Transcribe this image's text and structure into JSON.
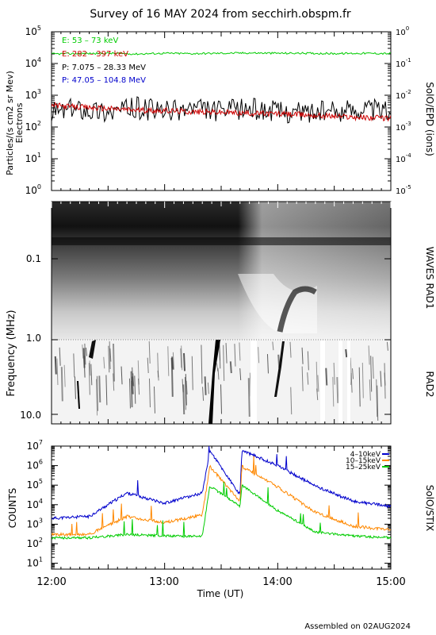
{
  "title": "Survey of 16 MAY 2024 from secchirh.obspm.fr",
  "footer": "Assembled on 02AUG2024",
  "x_axis": {
    "label": "Time (UT)",
    "ticks": [
      "12:00",
      "13:00",
      "14:00",
      "15:00"
    ]
  },
  "panel1": {
    "left_ylabel_line1": "Particles/(s cm2 sr Mev)",
    "left_ylabel_line2": "Electrons",
    "right_ylabel": "SolO/EPD (ions)",
    "left_ticks": [
      {
        "base": "10",
        "exp": "0"
      },
      {
        "base": "10",
        "exp": "1"
      },
      {
        "base": "10",
        "exp": "2"
      },
      {
        "base": "10",
        "exp": "3"
      },
      {
        "base": "10",
        "exp": "4"
      },
      {
        "base": "10",
        "exp": "5"
      }
    ],
    "right_ticks": [
      {
        "base": "10",
        "exp": "-5"
      },
      {
        "base": "10",
        "exp": "-4"
      },
      {
        "base": "10",
        "exp": "-3"
      },
      {
        "base": "10",
        "exp": "-2"
      },
      {
        "base": "10",
        "exp": "-1"
      },
      {
        "base": "10",
        "exp": "0"
      }
    ],
    "legend": [
      {
        "text": "E: 53 – 73 keV",
        "color": "#00cc00"
      },
      {
        "text": "E: 282 – 397 keV",
        "color": "#cc0000"
      },
      {
        "text": "P: 7.075 – 28.33 MeV",
        "color": "#000000"
      },
      {
        "text": "P: 47.05 – 104.8 MeV",
        "color": "#0000cc"
      }
    ]
  },
  "panel2": {
    "ylabel": "Frequency (MHz)",
    "right_label_top": "WAVES RAD1",
    "right_label_bottom": "RAD2",
    "ticks": [
      "0.1",
      "1.0",
      "10.0"
    ]
  },
  "panel3": {
    "ylabel": "COUNTS",
    "right_label": "SolO/STIX",
    "ticks": [
      {
        "base": "10",
        "exp": "1"
      },
      {
        "base": "10",
        "exp": "2"
      },
      {
        "base": "10",
        "exp": "3"
      },
      {
        "base": "10",
        "exp": "4"
      },
      {
        "base": "10",
        "exp": "5"
      },
      {
        "base": "10",
        "exp": "6"
      },
      {
        "base": "10",
        "exp": "7"
      }
    ],
    "legend": [
      {
        "text": "4–10keV",
        "color": "#0000cc"
      },
      {
        "text": "10–15keV",
        "color": "#ff8800"
      },
      {
        "text": "15–25keV",
        "color": "#00cc00"
      }
    ]
  },
  "chart_data": [
    {
      "type": "line",
      "title": "Survey of 16 MAY 2024 from secchirh.obspm.fr",
      "xlabel": "Time (UT)",
      "ylabel": "Particles/(s cm2 sr Mev) Electrons",
      "y2label": "SolO/EPD (ions)",
      "yscale": "log",
      "ylim": [
        1,
        100000
      ],
      "y2lim": [
        1e-05,
        1
      ],
      "x": [
        "12:00",
        "12:15",
        "12:30",
        "12:45",
        "13:00",
        "13:15",
        "13:30",
        "13:45",
        "14:00",
        "14:15",
        "14:30",
        "14:45",
        "15:00"
      ],
      "series": [
        {
          "name": "E: 53 – 73 keV",
          "color": "#00cc00",
          "axis": "left",
          "values": [
            20000,
            20500,
            21000,
            20000,
            21000,
            20500,
            21000,
            21500,
            21000,
            21000,
            20500,
            21000,
            20500
          ]
        },
        {
          "name": "E: 282 – 397 keV",
          "color": "#cc0000",
          "axis": "left",
          "values": [
            480,
            420,
            380,
            340,
            330,
            300,
            290,
            270,
            260,
            240,
            220,
            200,
            190
          ]
        },
        {
          "name": "P: 7.075 – 28.33 MeV",
          "color": "#000000",
          "axis": "right",
          "values": [
            0.003,
            0.004,
            0.003,
            0.004,
            0.003,
            0.004,
            0.003,
            0.004,
            0.003,
            0.003,
            0.003,
            0.004,
            0.003
          ]
        }
      ]
    },
    {
      "type": "heatmap",
      "ylabel": "Frequency (MHz)",
      "yscale": "log",
      "ylim": [
        0.02,
        16
      ],
      "y_ticks": [
        0.1,
        1.0,
        10.0
      ],
      "instruments": [
        "WAVES RAD1",
        "RAD2"
      ]
    },
    {
      "type": "line",
      "ylabel": "COUNTS",
      "right_label": "SolO/STIX",
      "yscale": "log",
      "ylim": [
        5,
        10000000
      ],
      "x": [
        "12:00",
        "12:20",
        "12:40",
        "13:00",
        "13:20",
        "13:24",
        "13:40",
        "13:41",
        "14:00",
        "14:20",
        "14:40",
        "15:00"
      ],
      "series": [
        {
          "name": "4–10keV",
          "color": "#0000cc",
          "values": [
            2000,
            2500,
            40000,
            12000,
            40000,
            6000000,
            30000,
            6000000,
            1000000,
            90000,
            15000,
            8000
          ]
        },
        {
          "name": "10–15keV",
          "color": "#ff8800",
          "values": [
            300,
            300,
            2500,
            1200,
            3000,
            900000,
            15000,
            900000,
            80000,
            4000,
            800,
            500
          ]
        },
        {
          "name": "15–25keV",
          "color": "#00cc00",
          "values": [
            200,
            200,
            300,
            250,
            250,
            90000,
            8000,
            100000,
            5000,
            400,
            250,
            200
          ]
        }
      ]
    }
  ]
}
